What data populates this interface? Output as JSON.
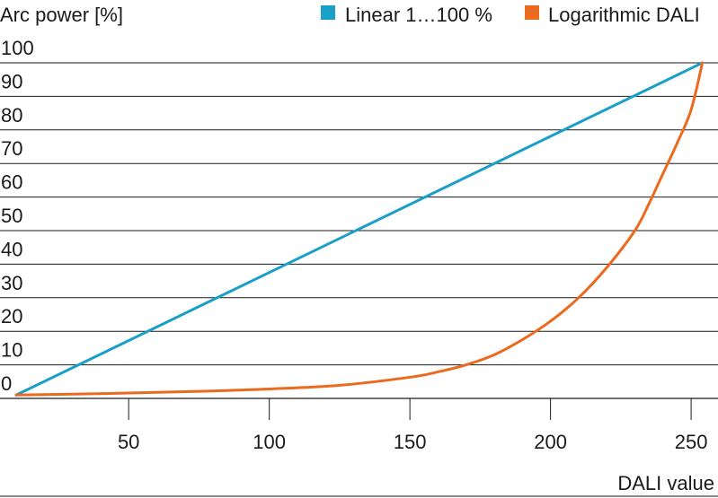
{
  "chart_data": {
    "type": "line",
    "ylabel": "Arc power [%]",
    "xlabel": "DALI value",
    "xlim": [
      10,
      257
    ],
    "ylim": [
      0,
      100
    ],
    "y_ticks": [
      0,
      10,
      20,
      30,
      40,
      50,
      60,
      70,
      80,
      90,
      100
    ],
    "x_ticks": [
      50,
      100,
      150,
      200,
      250
    ],
    "grid": "horizontal",
    "legend_position": "top-right",
    "colors": {
      "linear": "#1a9fc9",
      "logarithmic": "#eb6a1e",
      "grid": "#1a1a1a"
    },
    "series": [
      {
        "name": "Linear 1…100 %",
        "color": "#1a9fc9",
        "x": [
          10,
          254
        ],
        "y": [
          1,
          100
        ]
      },
      {
        "name": "Logarithmic DALI",
        "color": "#eb6a1e",
        "x": [
          10,
          25,
          50,
          75,
          100,
          125,
          150,
          160,
          170,
          180,
          190,
          200,
          210,
          220,
          230,
          235,
          240,
          245,
          250,
          254
        ],
        "y": [
          1,
          1.2,
          1.6,
          2.1,
          2.8,
          3.9,
          6.3,
          7.9,
          10,
          13,
          17.5,
          23,
          30,
          39,
          50,
          58,
          67,
          76,
          86,
          100
        ]
      }
    ]
  }
}
